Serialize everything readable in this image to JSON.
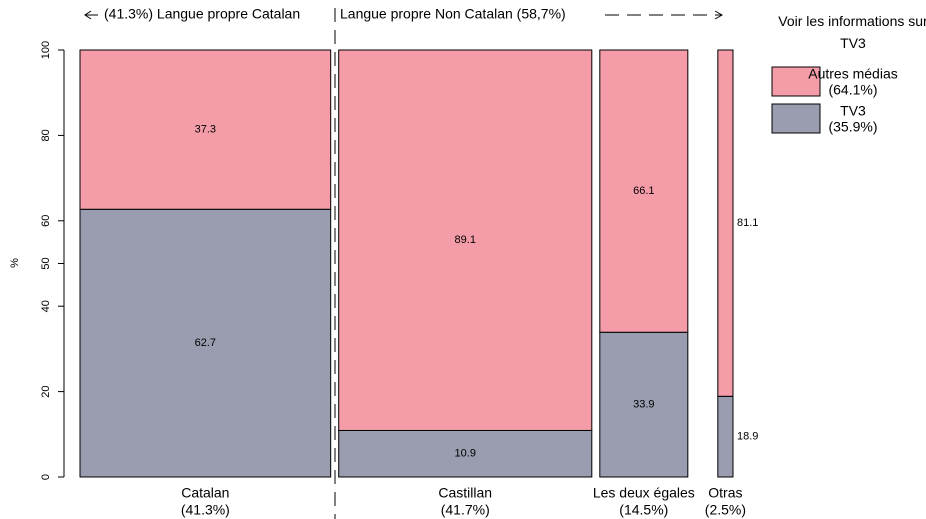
{
  "chart_data": {
    "type": "mosaic",
    "y_label": "%",
    "categories": [
      "Catalan",
      "Castillan",
      "Les deux égales",
      "Otras"
    ],
    "widths": [
      41.3,
      41.7,
      14.5,
      2.5
    ],
    "width_labels": [
      "(41.3%)",
      "(41.7%)",
      "(14.5%)",
      "(2.5%)"
    ],
    "series": [
      {
        "name": "TV3",
        "share_label": "(35.9%)",
        "color": "#9a9cb0",
        "values": [
          62.7,
          10.9,
          33.9,
          18.9
        ]
      },
      {
        "name": "Autres médias",
        "share_label": "(64.1%)",
        "color": "#f49da8",
        "values": [
          37.3,
          89.1,
          66.1,
          81.1
        ]
      }
    ],
    "ylim": [
      0,
      100
    ],
    "yticks": [
      0,
      20,
      40,
      50,
      60,
      80,
      100
    ],
    "legend_title": "Voir les informations sur TV3",
    "annotations": [
      "(41.3%) Langue propre Catalan",
      "Langue propre Non Catalan (58,7%)"
    ]
  }
}
